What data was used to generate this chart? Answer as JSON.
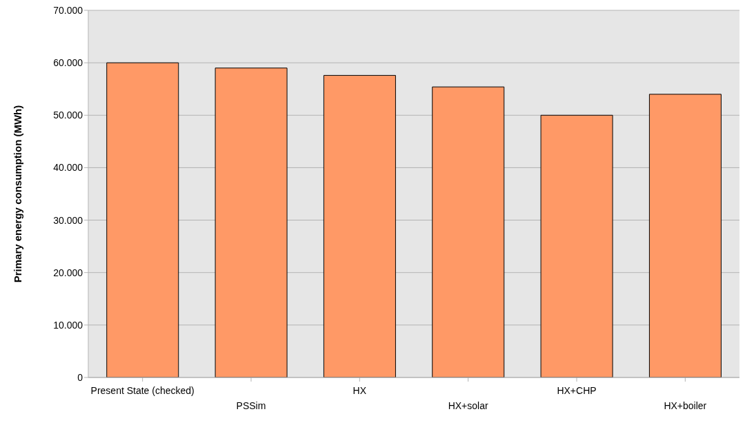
{
  "chart_data": {
    "type": "bar",
    "ylabel": "Primary energy consumption (MWh)",
    "categories": [
      "Present State (checked)",
      "PSSim",
      "HX",
      "HX+solar",
      "HX+CHP",
      "HX+boiler"
    ],
    "values": [
      60000,
      59000,
      57600,
      55400,
      50000,
      54000
    ],
    "color": "#ff9966",
    "ylim": [
      0,
      70000
    ],
    "yticks": [
      0,
      {
        "value": 10000,
        "label": "10.000"
      },
      {
        "value": 20000,
        "label": "20.000"
      },
      {
        "value": 30000,
        "label": "30.000"
      },
      {
        "value": 40000,
        "label": "40.000"
      },
      {
        "value": 50000,
        "label": "50.000"
      },
      {
        "value": 60000,
        "label": "60.000"
      },
      {
        "value": 70000,
        "label": "70.000"
      }
    ],
    "grid": "y",
    "legend": false
  }
}
